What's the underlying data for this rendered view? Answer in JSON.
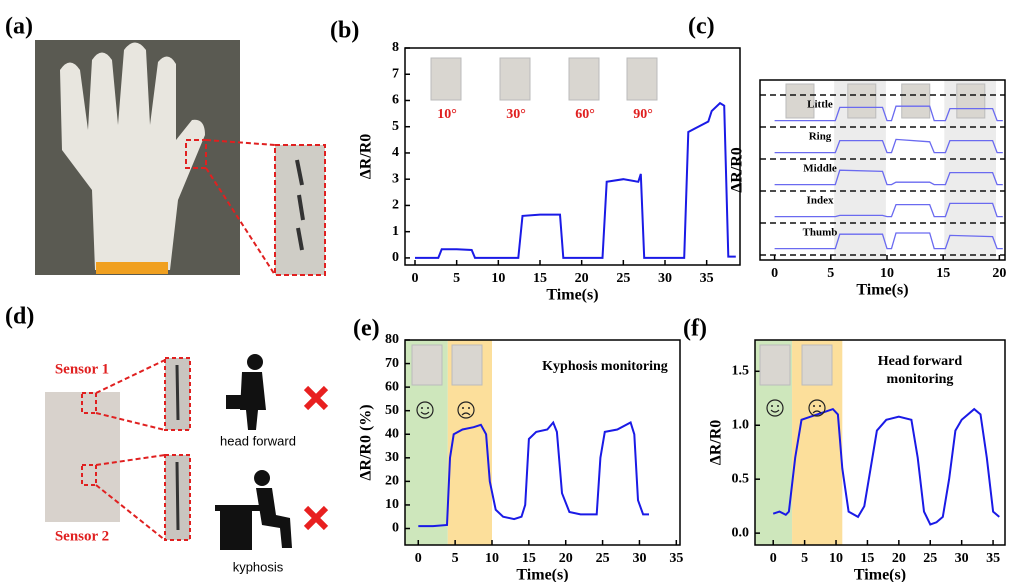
{
  "panel_labels": [
    "(a)",
    "(b)",
    "(c)",
    "(d)",
    "(e)",
    "(f)"
  ],
  "panel_d": {
    "sensor_labels": [
      "Sensor 1",
      "Sensor 2"
    ],
    "postures": [
      "head forward",
      "kyphosis"
    ]
  },
  "chart_data": [
    {
      "type": "line",
      "xlabel": "Time(s)",
      "ylabel": "ΔR/R0",
      "color": "#1a1ae6",
      "annotations": [
        "10°",
        "30°",
        "60°",
        "90°"
      ],
      "x": [
        0,
        2.8,
        3.2,
        5,
        6.8,
        7.2,
        12.4,
        12.9,
        15,
        17.4,
        17.8,
        22.5,
        23,
        25,
        26.8,
        27.1,
        27.5,
        32.3,
        32.8,
        34,
        35.2,
        35.6,
        36.6,
        37.1,
        37.6,
        38.5
      ],
      "values": [
        0,
        0,
        0.33,
        0.33,
        0.3,
        0,
        0,
        1.6,
        1.65,
        1.65,
        0,
        0,
        2.9,
        3.0,
        2.9,
        3.2,
        0,
        0,
        4.8,
        5.0,
        5.2,
        5.6,
        5.9,
        5.8,
        0.05,
        0.05
      ],
      "xlim": [
        -1.2,
        39
      ],
      "xticks": [
        0,
        5,
        10,
        15,
        20,
        25,
        30,
        35
      ],
      "ylim": [
        -0.27,
        8
      ],
      "yticks": [
        0,
        1,
        2,
        3,
        4,
        5,
        6,
        7,
        8
      ]
    },
    {
      "type": "multichannel",
      "xlabel": "Time(s)",
      "ylabel": "ΔR/R0",
      "x": [
        0,
        5,
        5.4,
        5.8,
        9.6,
        10,
        10.4,
        10.8,
        13.8,
        14.2,
        15.2,
        15.6,
        19.4,
        19.8,
        20.3
      ],
      "xlim": [
        -1.3,
        20.5
      ],
      "xticks": [
        0,
        5,
        10,
        15,
        20
      ],
      "ylim": [
        0,
        1
      ],
      "series": [
        {
          "name": "Little",
          "color": "#6a6af0",
          "values": [
            0.1,
            0.1,
            0.1,
            0.65,
            0.65,
            0.1,
            0.1,
            0.7,
            0.7,
            0.1,
            0.1,
            0.6,
            0.6,
            0.1,
            0.1
          ]
        },
        {
          "name": "Ring",
          "color": "#6a6af0",
          "values": [
            0.1,
            0.1,
            0.1,
            0.6,
            0.6,
            0.1,
            0.1,
            0.65,
            0.55,
            0.1,
            0.1,
            0.6,
            0.6,
            0.1,
            0.1
          ]
        },
        {
          "name": "Middle",
          "color": "#6a6af0",
          "values": [
            0.1,
            0.1,
            0.1,
            0.7,
            0.65,
            0.1,
            0.1,
            0.2,
            0.2,
            0.1,
            0.1,
            0.6,
            0.6,
            0.1,
            0.1
          ]
        },
        {
          "name": "Index",
          "color": "#6a6af0",
          "values": [
            0.1,
            0.1,
            0.1,
            0.15,
            0.15,
            0.1,
            0.1,
            0.6,
            0.6,
            0.1,
            0.1,
            0.65,
            0.65,
            0.1,
            0.1
          ]
        },
        {
          "name": "Thumb",
          "color": "#6a6af0",
          "values": [
            0.1,
            0.1,
            0.1,
            0.7,
            0.7,
            0.1,
            0.1,
            0.75,
            0.75,
            0.1,
            0.1,
            0.65,
            0.6,
            0.1,
            0.1
          ]
        }
      ]
    },
    {
      "type": "line",
      "xlabel": "Time(s)",
      "ylabel": "ΔR/R0 (%)",
      "color": "#1a1ae6",
      "annotations": [
        "Kyphosis monitoring"
      ],
      "shaded_regions": [
        {
          "from": -1.8,
          "to": 4,
          "color": "#c5e3b0"
        },
        {
          "from": 4,
          "to": 10,
          "color": "#fbd98a"
        }
      ],
      "x": [
        0,
        2,
        3.9,
        4.3,
        4.8,
        6,
        7.5,
        8.5,
        9.2,
        9.7,
        10.5,
        11.5,
        13,
        14,
        14.5,
        15,
        16,
        17.5,
        18.3,
        18.8,
        19.5,
        20.5,
        22,
        24.2,
        24.7,
        25.3,
        27,
        28.8,
        29.3,
        29.8,
        30.5,
        31.3
      ],
      "values": [
        1,
        1,
        1.5,
        30,
        40,
        42,
        43,
        44,
        40,
        20,
        8,
        5,
        4,
        5,
        10,
        38,
        41,
        42,
        45,
        41,
        15,
        7,
        6,
        6,
        30,
        41,
        42,
        45,
        40,
        12,
        6,
        6
      ],
      "xlim": [
        -1.8,
        35.5
      ],
      "xticks": [
        0,
        5,
        10,
        15,
        20,
        25,
        30,
        35
      ],
      "ylim": [
        -7,
        80
      ],
      "yticks": [
        0,
        10,
        20,
        30,
        40,
        50,
        60,
        70,
        80
      ]
    },
    {
      "type": "line",
      "xlabel": "Time(s)",
      "ylabel": "ΔR/R0",
      "color": "#1a1ae6",
      "annotations": [
        "Head forward",
        "monitoring"
      ],
      "shaded_regions": [
        {
          "from": -2.9,
          "to": 3,
          "color": "#c5e3b0"
        },
        {
          "from": 3,
          "to": 11,
          "color": "#fbd98a"
        }
      ],
      "x": [
        0,
        1,
        2,
        2.5,
        3.5,
        4.5,
        6,
        8,
        9.5,
        10.3,
        11,
        12,
        13.5,
        14.5,
        15.5,
        16.5,
        18,
        20,
        22,
        23,
        24,
        25,
        26,
        27,
        28,
        29,
        30,
        32,
        33,
        34,
        35,
        36
      ],
      "values": [
        0.18,
        0.2,
        0.17,
        0.2,
        0.7,
        1.05,
        1.08,
        1.12,
        1.15,
        1.1,
        0.6,
        0.2,
        0.15,
        0.25,
        0.6,
        0.95,
        1.05,
        1.08,
        1.05,
        0.7,
        0.2,
        0.08,
        0.1,
        0.15,
        0.5,
        0.95,
        1.05,
        1.15,
        1.1,
        0.7,
        0.2,
        0.15
      ],
      "xlim": [
        -2.9,
        36.9
      ],
      "xticks": [
        0,
        5,
        10,
        15,
        20,
        25,
        30,
        35
      ],
      "ylim": [
        -0.11,
        1.79
      ],
      "yticks": [
        {
          "value": 0,
          "label": "0.0"
        },
        0.5,
        {
          "value": 1,
          "label": "1.0"
        },
        1.5
      ]
    }
  ]
}
